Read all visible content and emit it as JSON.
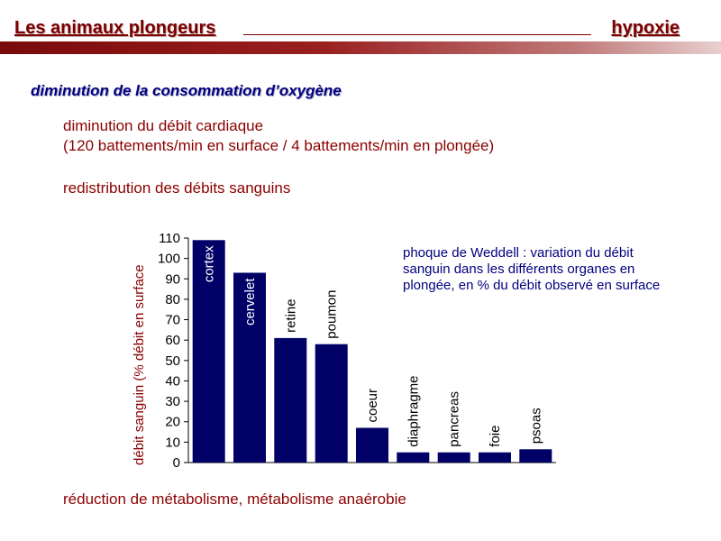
{
  "header": {
    "title": "Les animaux plongeurs",
    "topic": "hypoxie"
  },
  "subtitle": "diminution de la consommation d’oxygène",
  "text": {
    "line1": "diminution du débit cardiaque",
    "line2": "(120 battements/min en surface / 4 battements/min en plongée)",
    "line3": "redistribution des débits sanguins",
    "line4": "réduction de métabolisme, métabolisme anaérobie"
  },
  "annotation": "phoque de Weddell : variation du débit sanguin dans les différents organes en plongée, en % du débit observé en surface",
  "colors": {
    "header": "#7a0000",
    "bar": "#000066",
    "text_red": "#8b0000",
    "text_blue": "#000080"
  },
  "chart_data": {
    "type": "bar",
    "categories": [
      "cortex",
      "cervelet",
      "retine",
      "poumon",
      "coeur",
      "diaphragme",
      "pancreas",
      "foie",
      "psoas"
    ],
    "values": [
      109,
      93,
      61,
      58,
      17,
      5,
      5,
      5,
      6.5
    ],
    "ylabel": "débit sanguin (% débit en surface",
    "ylim": [
      0,
      110
    ],
    "yticks": [
      0,
      10,
      20,
      30,
      40,
      50,
      60,
      70,
      80,
      90,
      100,
      110
    ],
    "grid": false
  }
}
